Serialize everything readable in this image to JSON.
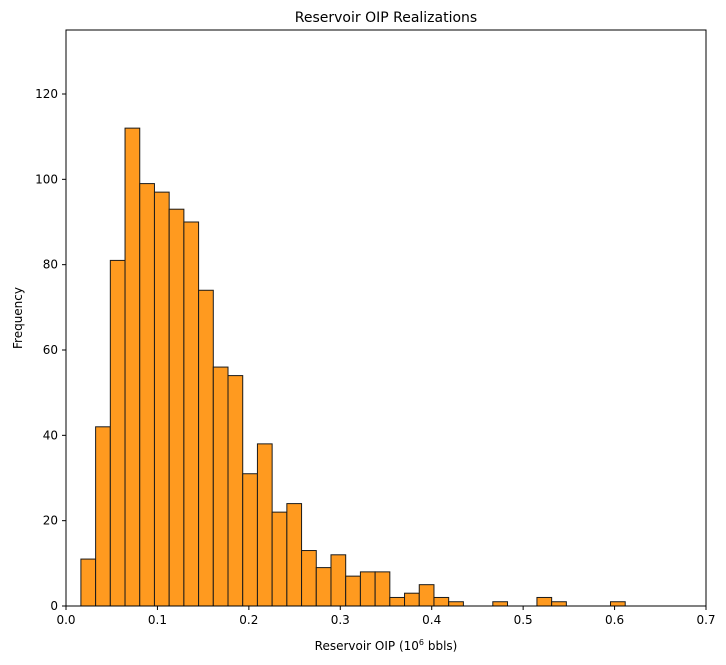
{
  "chart_data": {
    "type": "bar",
    "title": "Reservoir OIP Realizations",
    "xlabel_parts": {
      "pre": "Reservoir OIP (10",
      "sup": "6",
      "post": " bbls)"
    },
    "ylabel": "Frequency",
    "xlim": [
      0,
      0.7
    ],
    "ylim": [
      0,
      135
    ],
    "xticks": [
      0.0,
      0.1,
      0.2,
      0.3,
      0.4,
      0.5,
      0.6,
      0.7
    ],
    "xtick_labels": [
      "0.0",
      "0.1",
      "0.2",
      "0.3",
      "0.4",
      "0.5",
      "0.6",
      "0.7"
    ],
    "yticks": [
      0,
      20,
      40,
      60,
      80,
      100,
      120
    ],
    "ytick_labels": [
      "0",
      "20",
      "40",
      "60",
      "80",
      "100",
      "120"
    ],
    "bar_color": "#ff9a1f",
    "edge_color": "#1a1a1a",
    "bins_start": 0.0163,
    "bin_width": 0.01609,
    "counts": [
      11,
      42,
      81,
      112,
      99,
      97,
      93,
      90,
      74,
      56,
      54,
      31,
      38,
      22,
      24,
      13,
      9,
      12,
      7,
      8,
      8,
      2,
      3,
      5,
      2,
      1,
      0,
      0,
      1,
      0,
      0,
      2,
      1,
      0,
      0,
      0,
      1
    ]
  }
}
